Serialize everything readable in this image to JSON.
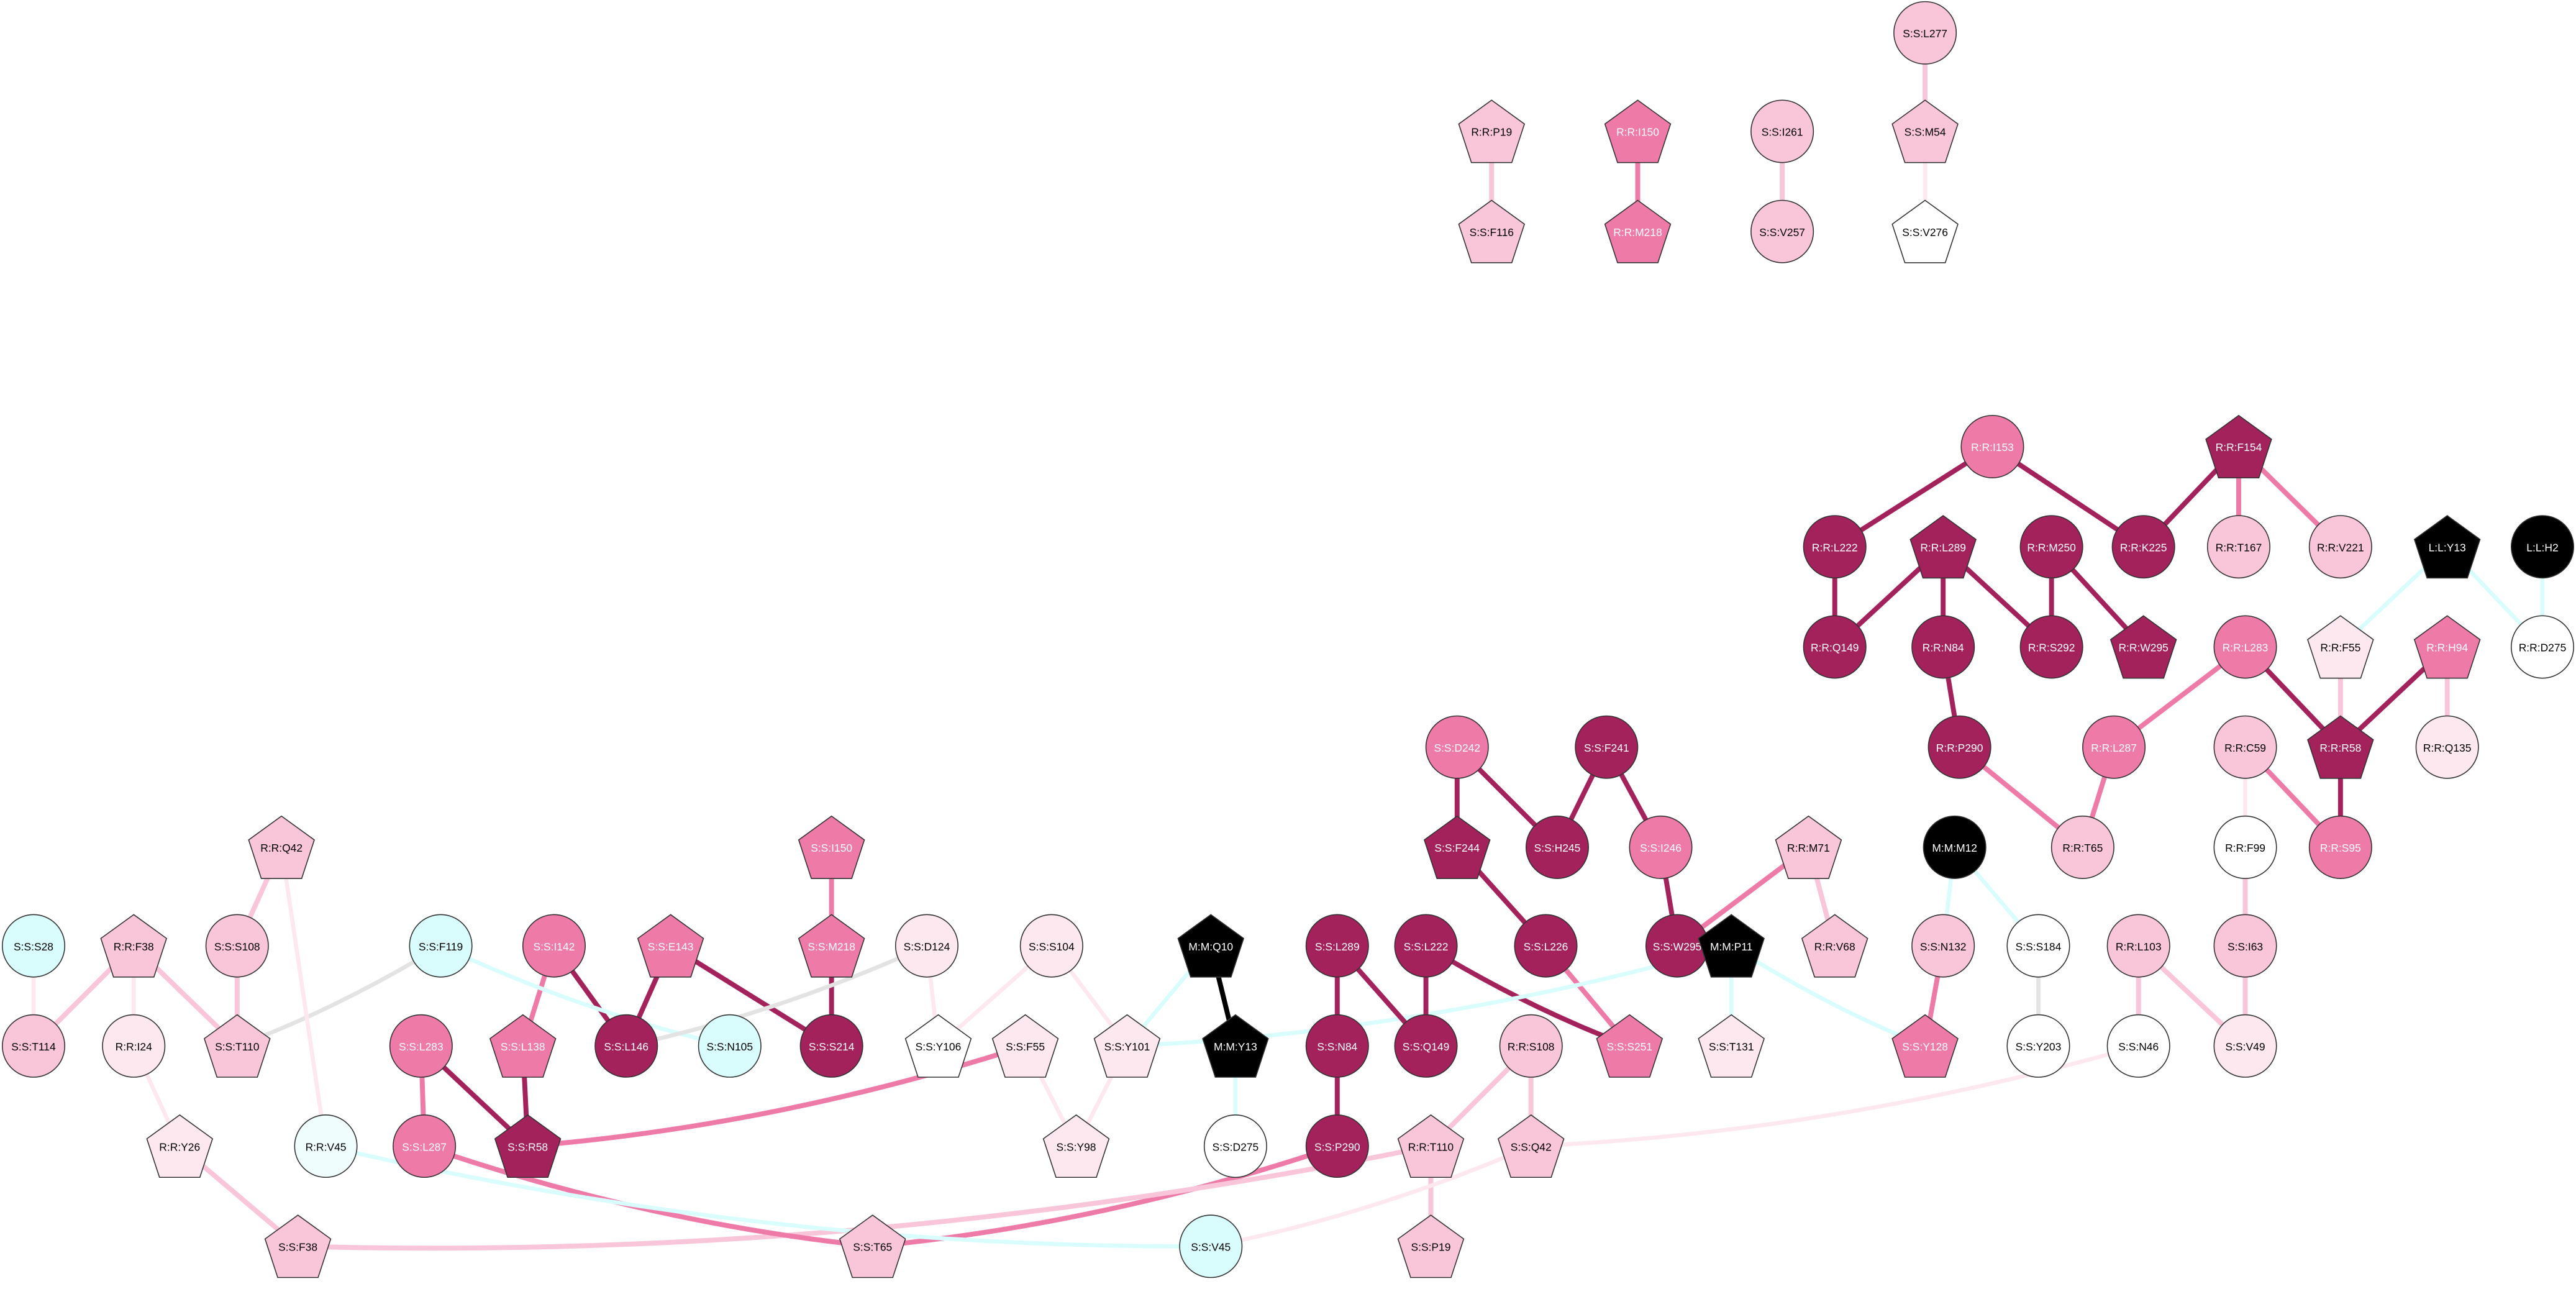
{
  "nodes": [
    "S:S:L277",
    "S:S:M54",
    "S:S:V276",
    "R:R:P19",
    "S:S:F116",
    "R:R:I150",
    "R:R:M218",
    "S:S:I261",
    "S:S:V257",
    "R:R:I153",
    "R:R:F154",
    "R:R:L222",
    "R:R:L289",
    "R:R:M250",
    "R:R:K225",
    "R:R:T167",
    "R:R:V221",
    "L:L:Y13",
    "L:L:H2",
    "R:R:Q149",
    "R:R:N84",
    "R:R:S292",
    "R:R:W295",
    "R:R:L283",
    "R:R:F55",
    "R:R:H94",
    "R:R:D275",
    "R:R:P290",
    "R:R:L287",
    "R:R:C59",
    "R:R:R58",
    "R:R:Q135",
    "R:R:T65",
    "R:R:S95",
    "R:R:F99",
    "M:M:M12",
    "S:S:D242",
    "S:S:F241",
    "S:S:F244",
    "S:S:H245",
    "S:S:I246",
    "R:R:M71",
    "R:R:V68",
    "S:S:L226",
    "S:S:W295",
    "M:M:P11",
    "S:S:N132",
    "S:S:S184",
    "R:R:L103",
    "S:S:I63",
    "S:S:V49",
    "S:S:N46",
    "S:S:Y203",
    "S:S:Y128",
    "S:S:T131",
    "S:S:S251",
    "S:S:Q149",
    "S:S:L222",
    "S:S:L289",
    "S:S:N84",
    "S:S:P290",
    "M:M:Q10",
    "M:M:Y13",
    "S:S:D275",
    "R:R:S108",
    "R:R:T110",
    "S:S:Q42",
    "S:S:P19",
    "S:S:V45",
    "S:S:I150",
    "S:S:M218",
    "S:S:S214",
    "S:S:E143",
    "S:S:I142",
    "S:S:L146",
    "S:S:L138",
    "S:S:N105",
    "S:S:F119",
    "S:S:D124",
    "S:S:Y106",
    "S:S:S104",
    "S:S:Y101",
    "S:S:F55",
    "S:S:Y98",
    "S:S:L283",
    "S:S:L287",
    "S:S:R58",
    "S:S:T65",
    "R:R:Q42",
    "S:S:S108",
    "R:R:F38",
    "S:S:S28",
    "S:S:T114",
    "R:R:I24",
    "S:S:T110",
    "R:R:Y26",
    "R:R:V45",
    "S:S:F38"
  ]
}
